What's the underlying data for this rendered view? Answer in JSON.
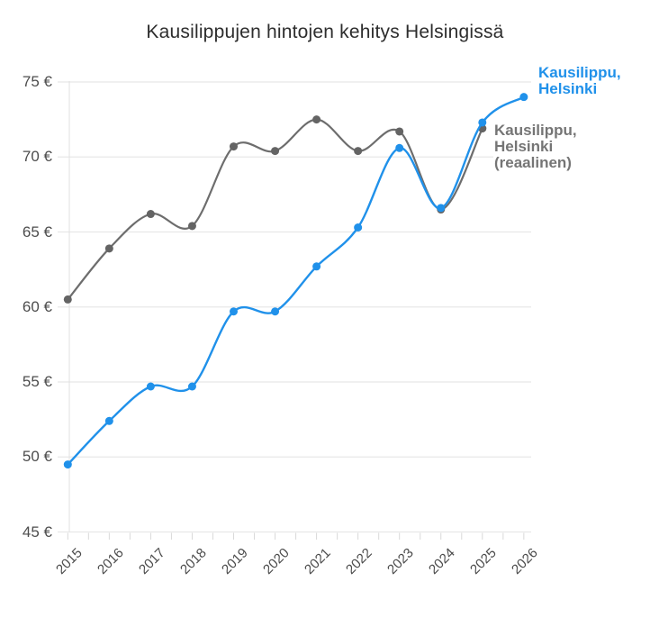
{
  "title": "Kausilippujen hintojen kehitys Helsingissä",
  "colors": {
    "nominal_line": "#2091ea",
    "real_line": "#6d6d6d",
    "real_dot": "#646464",
    "gridline": "#e8e8e8",
    "axis_line": "#e0e0e0",
    "tick": "#d9d9d9",
    "title_text": "#2d2d2d",
    "axis_label_text": "#4a4a4a",
    "legend_real_text": "#757575"
  },
  "legend": {
    "nominal_lines": [
      "Kausilippu,",
      "Helsinki"
    ],
    "real_lines": [
      "Kausilippu,",
      "Helsinki",
      "(reaalinen)"
    ]
  },
  "chart_data": {
    "type": "line",
    "title": "Kausilippujen hintojen kehitys Helsingissä",
    "x": [
      2015,
      2016,
      2017,
      2018,
      2019,
      2020,
      2021,
      2022,
      2023,
      2024,
      2025,
      2026
    ],
    "series": [
      {
        "name": "Kausilippu, Helsinki",
        "color": "#2091ea",
        "values": [
          49.5,
          52.4,
          54.7,
          54.7,
          59.7,
          59.7,
          62.7,
          65.3,
          70.6,
          66.6,
          72.3,
          74.0
        ]
      },
      {
        "name": "Kausilippu, Helsinki (reaalinen)",
        "color": "#6d6d6d",
        "values": [
          60.5,
          63.9,
          66.2,
          65.4,
          70.7,
          70.4,
          72.5,
          70.4,
          71.7,
          66.5,
          71.9,
          null
        ]
      }
    ],
    "xlabel": "",
    "ylabel": "",
    "ylim": [
      45,
      75
    ],
    "yticks": [
      45,
      50,
      55,
      60,
      65,
      70,
      75
    ],
    "ytick_suffix": " €",
    "grid": true,
    "curve": "smooth",
    "legend_position": "right-end-labels"
  }
}
